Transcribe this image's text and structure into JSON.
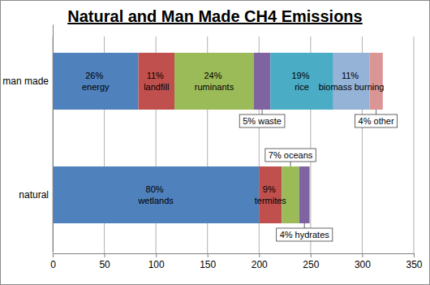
{
  "chart_data": {
    "type": "bar",
    "title": "Natural and Man Made CH4 Emissions",
    "orientation": "horizontal",
    "stacked": true,
    "grid": true,
    "categories": [
      "man made",
      "natural"
    ],
    "series": [
      {
        "name": "26% energy",
        "color": "#4f81bd",
        "values": [
          83,
          null
        ]
      },
      {
        "name": "11% landfill",
        "color": "#c0504d",
        "values": [
          35,
          null
        ]
      },
      {
        "name": "24% ruminants",
        "color": "#9bbb59",
        "values": [
          77,
          null
        ]
      },
      {
        "name": "5% waste",
        "color": "#8064a2",
        "values": [
          16,
          null
        ]
      },
      {
        "name": "19% rice",
        "color": "#4bacc6",
        "values": [
          61,
          null
        ]
      },
      {
        "name": "11% biomass burning",
        "color": "#95b3d7",
        "values": [
          35,
          null
        ]
      },
      {
        "name": "4% other",
        "color": "#d99694",
        "values": [
          13,
          null
        ]
      },
      {
        "name": "80% wetlands",
        "color": "#4f81bd",
        "values": [
          null,
          200
        ]
      },
      {
        "name": "9% termites",
        "color": "#c0504d",
        "values": [
          null,
          22
        ]
      },
      {
        "name": "7% oceans",
        "color": "#9bbb59",
        "values": [
          null,
          17
        ]
      },
      {
        "name": "4% hydrates",
        "color": "#8064a2",
        "values": [
          null,
          10
        ]
      }
    ],
    "xlim": [
      0,
      350
    ],
    "xticks": [
      0,
      50,
      100,
      150,
      200,
      250,
      300,
      350
    ]
  }
}
